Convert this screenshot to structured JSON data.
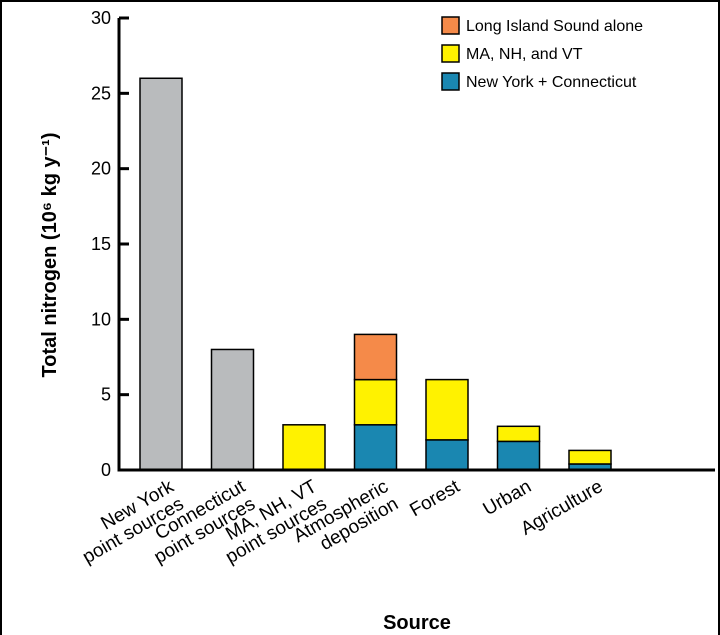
{
  "chart_data": {
    "type": "bar",
    "stacked": true,
    "categories": [
      [
        "New York",
        "point sources"
      ],
      [
        "Connecticut",
        "point sources"
      ],
      [
        "MA, NH, VT",
        "point sources"
      ],
      [
        "Atmospheric",
        "deposition"
      ],
      [
        "Forest"
      ],
      [
        "Urban"
      ],
      [
        "Agriculture"
      ]
    ],
    "point_source_values": [
      26,
      8,
      0,
      0,
      0,
      0,
      0
    ],
    "point_source_color": "#b9bbbd",
    "series": [
      {
        "name": "New York + Connecticut",
        "color": "#1a87b1",
        "values": [
          0,
          0,
          0,
          3,
          2,
          1.9,
          0.4
        ]
      },
      {
        "name": "MA, NH, and VT",
        "color": "#fff200",
        "values": [
          0,
          0,
          3,
          3,
          4,
          1,
          0.9
        ]
      },
      {
        "name": "Long Island Sound alone",
        "color": "#f58a49",
        "values": [
          0,
          0,
          0,
          3,
          0,
          0,
          0
        ]
      }
    ],
    "legend_order": [
      2,
      1,
      0
    ],
    "legend_position": "top-right",
    "ylim": [
      0,
      30
    ],
    "yticks": [
      "0",
      "5",
      "10",
      "15",
      "20",
      "25",
      "30"
    ],
    "ylabel": "Total nitrogen (10⁶ kg y⁻¹)",
    "xlabel": "Source",
    "grid": false
  }
}
